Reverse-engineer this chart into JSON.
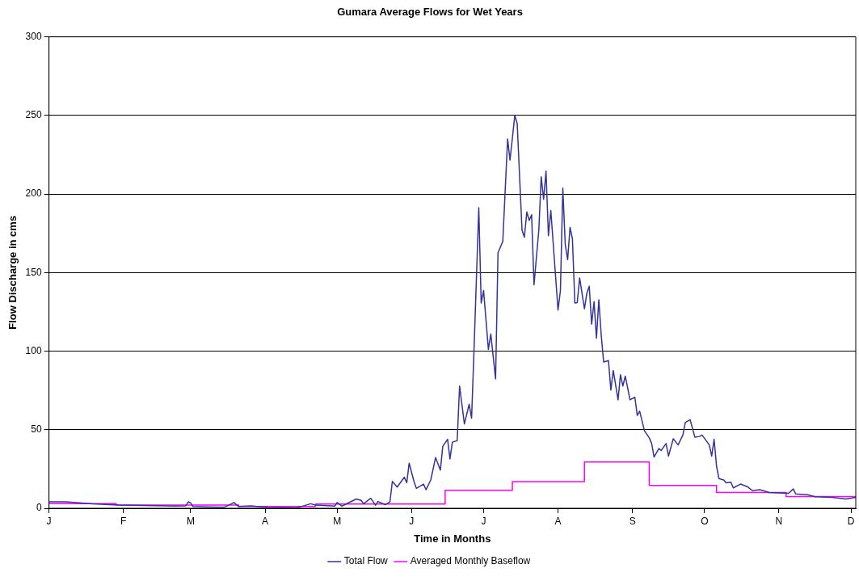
{
  "chart_data": {
    "type": "line",
    "title": "Gumara Average Flows for Wet Years",
    "xlabel": "Time in Months",
    "ylabel": "Flow Discharge in cms",
    "categories": [
      "J",
      null,
      null,
      null,
      null,
      null,
      null,
      null,
      null,
      null,
      null,
      null,
      null,
      null,
      null,
      null,
      null,
      null,
      null,
      null,
      null,
      null,
      null,
      null,
      null,
      null,
      null,
      null,
      null,
      null,
      null,
      "F",
      null,
      null,
      null,
      null,
      null,
      null,
      null,
      null,
      null,
      null,
      null,
      null,
      null,
      null,
      null,
      null,
      null,
      null,
      null,
      null,
      null,
      null,
      null,
      null,
      null,
      null,
      null,
      "M",
      null,
      null,
      null,
      null,
      null,
      null,
      null,
      null,
      null,
      null,
      null,
      null,
      null,
      null,
      null,
      null,
      null,
      null,
      null,
      null,
      null,
      null,
      null,
      null,
      null,
      null,
      null,
      null,
      null,
      null,
      "A",
      null,
      null,
      null,
      null,
      null,
      null,
      null,
      null,
      null,
      null,
      null,
      null,
      null,
      null,
      null,
      null,
      null,
      null,
      null,
      null,
      null,
      null,
      null,
      null,
      null,
      null,
      null,
      null,
      null,
      "M",
      null,
      null,
      null,
      null,
      null,
      null,
      null,
      null,
      null,
      null,
      null,
      null,
      null,
      null,
      null,
      null,
      null,
      null,
      null,
      null,
      null,
      null,
      null,
      null,
      null,
      null,
      null,
      null,
      null,
      null,
      "J",
      null,
      null,
      null,
      null,
      null,
      null,
      null,
      null,
      null,
      null,
      null,
      null,
      null,
      null,
      null,
      null,
      null,
      null,
      null,
      null,
      null,
      null,
      null,
      null,
      null,
      null,
      null,
      null,
      null,
      "J",
      null,
      null,
      null,
      null,
      null,
      null,
      null,
      null,
      null,
      null,
      null,
      null,
      null,
      null,
      null,
      null,
      null,
      null,
      null,
      null,
      null,
      null,
      null,
      null,
      null,
      null,
      null,
      null,
      null,
      null,
      "A",
      null,
      null,
      null,
      null,
      null,
      null,
      null,
      null,
      null,
      null,
      null,
      null,
      null,
      null,
      null,
      null,
      null,
      null,
      null,
      null,
      null,
      null,
      null,
      null,
      null,
      null,
      null,
      null,
      null,
      null,
      "S",
      null,
      null,
      null,
      null,
      null,
      null,
      null,
      null,
      null,
      null,
      null,
      null,
      null,
      null,
      null,
      null,
      null,
      null,
      null,
      null,
      null,
      null,
      null,
      null,
      null,
      null,
      null,
      null,
      null,
      "O",
      null,
      null,
      null,
      null,
      null,
      null,
      null,
      null,
      null,
      null,
      null,
      null,
      null,
      null,
      null,
      null,
      null,
      null,
      null,
      null,
      null,
      null,
      null,
      null,
      null,
      null,
      null,
      null,
      null,
      null,
      "N",
      null,
      null,
      null,
      null,
      null,
      null,
      null,
      null,
      null,
      null,
      null,
      null,
      null,
      null,
      null,
      null,
      null,
      null,
      null,
      null,
      null,
      null,
      null,
      null,
      null,
      null,
      null,
      null,
      null,
      "D",
      null,
      null
    ],
    "ylim": [
      0,
      300
    ],
    "yticks": [
      0,
      50,
      100,
      150,
      200,
      250,
      300
    ],
    "grid": "y",
    "legend": "bottom",
    "marker": "none",
    "line_style": "solid",
    "series": [
      {
        "name": "Total Flow",
        "type": "line",
        "color": "#333399",
        "values": [
          4.1,
          null,
          null,
          null,
          null,
          null,
          null,
          4.1,
          null,
          null,
          null,
          null,
          null,
          null,
          null,
          null,
          null,
          null,
          2.8,
          null,
          null,
          null,
          null,
          null,
          null,
          null,
          null,
          null,
          null,
          2,
          null,
          null,
          null,
          null,
          null,
          null,
          null,
          null,
          null,
          null,
          null,
          null,
          null,
          null,
          null,
          null,
          null,
          null,
          null,
          null,
          null,
          null,
          null,
          1.4,
          null,
          null,
          null,
          1.6,
          4.1,
          3.4,
          1.1,
          null,
          null,
          null,
          null,
          null,
          null,
          null,
          null,
          null,
          null,
          null,
          null,
          0.7,
          null,
          2,
          null,
          3.7,
          null,
          1.1,
          null,
          null,
          null,
          null,
          1.6,
          null,
          null,
          null,
          null,
          null,
          null,
          0.5,
          null,
          null,
          null,
          null,
          null,
          null,
          null,
          null,
          null,
          null,
          null,
          0.2,
          null,
          null,
          null,
          2,
          null,
          2.9,
          null,
          2,
          null,
          null,
          null,
          null,
          null,
          null,
          null,
          1.4,
          3.7,
          null,
          1.4,
          null,
          null,
          null,
          null,
          null,
          5.9,
          null,
          5,
          2.9,
          null,
          null,
          6.4,
          null,
          2,
          4.3,
          null,
          null,
          2.3,
          null,
          4.1,
          17.1,
          null,
          13.5,
          null,
          null,
          19.8,
          16.2,
          28.7,
          null,
          17.1,
          12.7,
          null,
          null,
          15.4,
          11.8,
          null,
          18,
          null,
          32.3,
          null,
          24.3,
          39.4,
          null,
          43.9,
          31.4,
          42.1,
          null,
          43,
          77.8,
          null,
          53.7,
          null,
          66.2,
          57.3,
          100.2,
          null,
          191.3,
          130.6,
          138.6,
          null,
          101.1,
          110.9,
          null,
          82.3,
          162.6,
          null,
          169.8,
          null,
          235,
          221.6,
          null,
          250,
          244.8,
          null,
          177,
          172.5,
          188.6,
          183.2,
          186.8,
          142.2,
          null,
          177,
          210.9,
          196.6,
          214.5,
          173.4,
          189.5,
          null,
          null,
          126.1,
          138.6,
          203.8,
          168,
          158.2,
          178.7,
          171.5,
          130.6,
          130.9,
          146.6,
          null,
          127,
          136.8,
          141.3,
          117.2,
          131.5,
          108.3,
          132.7,
          110,
          93.1,
          null,
          94,
          75.2,
          87.7,
          null,
          69,
          85,
          77.8,
          84.1,
          null,
          69,
          null,
          70.7,
          59.1,
          61.8,
          null,
          49.3,
          null,
          44.8,
          41.2,
          32.6,
          null,
          38,
          36.8,
          null,
          41.2,
          33.2,
          null,
          44.3,
          null,
          40.3,
          null,
          46.6,
          54.6,
          null,
          56.4,
          null,
          45.2,
          null,
          45.7,
          46.6,
          null,
          null,
          40.3,
          33.2,
          43.9,
          27,
          18.9,
          null,
          18,
          16.2,
          null,
          16.6,
          13,
          null,
          null,
          15.4,
          null,
          null,
          13.6,
          null,
          11.2,
          null,
          null,
          11.8,
          null,
          null,
          null,
          10,
          null,
          null,
          null,
          null,
          null,
          null,
          null,
          9.5,
          null,
          12.3,
          9.1,
          null,
          null,
          null,
          null,
          8.6,
          null,
          null,
          7.3,
          null,
          null,
          null,
          null,
          null,
          null,
          7,
          null,
          null,
          null,
          null,
          null,
          5.9,
          null,
          null,
          null,
          7
        ]
      },
      {
        "name": "Averaged Monthly Baseflow",
        "type": "step",
        "color": "#ff00ff",
        "values": [
          3,
          3,
          3,
          3,
          3,
          3,
          3,
          3,
          3,
          3,
          3,
          3,
          3,
          3,
          3,
          3,
          3,
          3,
          3,
          3,
          3,
          3,
          3,
          3,
          3,
          3,
          3,
          3,
          3,
          2.1,
          2.1,
          2.1,
          2.1,
          2.1,
          2.1,
          2.1,
          2.1,
          2.1,
          2.1,
          2.1,
          2.1,
          2.1,
          2.1,
          2.1,
          2.1,
          2.1,
          2.1,
          2.1,
          2.1,
          2.1,
          2.1,
          2.1,
          2.1,
          2.1,
          2.1,
          2.1,
          2.1,
          2.1,
          2.1,
          2.1,
          2.1,
          2.1,
          2.1,
          2.1,
          2.1,
          2.1,
          2.1,
          2.1,
          2.1,
          2.1,
          2.1,
          2.1,
          2.1,
          2.1,
          2.1,
          2.1,
          2.1,
          2.1,
          2.1,
          2.1,
          1.1,
          1.1,
          1.1,
          1.1,
          1.1,
          1.1,
          1.1,
          1.1,
          1.1,
          1.1,
          1.1,
          1.1,
          1.1,
          1.1,
          1.1,
          1.1,
          1.1,
          1.1,
          1.1,
          1.1,
          1.1,
          1.1,
          1.1,
          1.1,
          1.1,
          1.1,
          1.1,
          1.1,
          1.1,
          1.1,
          1.1,
          1.1,
          2.7,
          2.7,
          2.7,
          2.7,
          2.7,
          2.7,
          2.7,
          2.7,
          2.7,
          2.7,
          2.7,
          2.7,
          2.7,
          2.7,
          2.7,
          2.7,
          2.7,
          2.7,
          2.7,
          2.7,
          2.7,
          2.7,
          2.7,
          2.7,
          2.7,
          2.7,
          2.7,
          2.7,
          2.7,
          2.7,
          2.7,
          2.7,
          2.7,
          2.7,
          2.7,
          2.7,
          2.7,
          2.7,
          2.7,
          2.7,
          2.7,
          2.7,
          2.7,
          2.7,
          2.7,
          2.7,
          2.7,
          2.7,
          2.7,
          2.7,
          2.7,
          2.7,
          2.7,
          2.7,
          11.5,
          11.5,
          11.5,
          11.5,
          11.5,
          11.5,
          11.5,
          11.5,
          11.5,
          11.5,
          11.5,
          11.5,
          11.5,
          11.5,
          11.5,
          11.5,
          11.5,
          11.5,
          11.5,
          11.5,
          11.5,
          11.5,
          11.5,
          11.5,
          11.5,
          11.5,
          11.5,
          11.5,
          17,
          17,
          17,
          17,
          17,
          17,
          17,
          17,
          17,
          17,
          17,
          17,
          17,
          17,
          17,
          17,
          17,
          17,
          17,
          17,
          17,
          17,
          17,
          17,
          17,
          17,
          17,
          17,
          17,
          17,
          29.5,
          29.5,
          29.5,
          29.5,
          29.5,
          29.5,
          29.5,
          29.5,
          29.5,
          29.5,
          29.5,
          29.5,
          29.5,
          29.5,
          29.5,
          29.5,
          29.5,
          29.5,
          29.5,
          29.5,
          29.5,
          29.5,
          29.5,
          29.5,
          29.5,
          29.5,
          29.5,
          14.5,
          14.5,
          14.5,
          14.5,
          14.5,
          14.5,
          14.5,
          14.5,
          14.5,
          14.5,
          14.5,
          14.5,
          14.5,
          14.5,
          14.5,
          14.5,
          14.5,
          14.5,
          14.5,
          14.5,
          14.5,
          14.5,
          14.5,
          14.5,
          14.5,
          14.5,
          14.5,
          14.5,
          10,
          10,
          10,
          10,
          10,
          10,
          10,
          10,
          10,
          10,
          10,
          10,
          10,
          10,
          10,
          10,
          10,
          10,
          10,
          10,
          10,
          10,
          10,
          10,
          10,
          10,
          10,
          10,
          10,
          7.5,
          7.5,
          7.5,
          7.5,
          7.5,
          7.5,
          7.5,
          7.5,
          7.5,
          7.5,
          7.5,
          7.5,
          7.5,
          7.5,
          7.5,
          7.5,
          7.5,
          7.5,
          7.5,
          7.5,
          7.5,
          7.5,
          7.5,
          7.5,
          7.5,
          7.5,
          7.5,
          7.5,
          7.5
        ]
      }
    ]
  }
}
